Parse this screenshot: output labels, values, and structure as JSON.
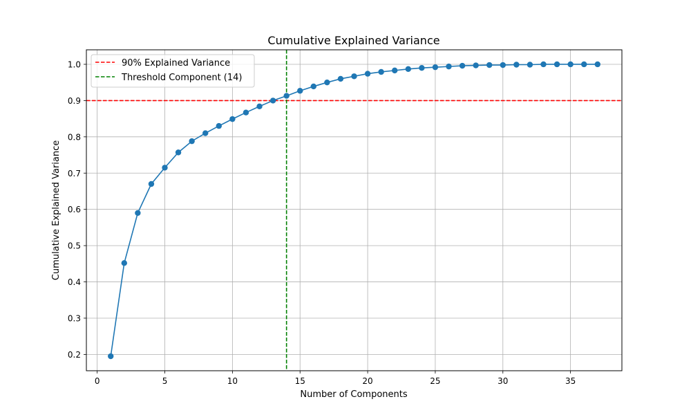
{
  "chart_data": {
    "type": "line",
    "title": "Cumulative Explained Variance",
    "xlabel": "Number of Components",
    "ylabel": "Cumulative Explained Variance",
    "xlim": [
      -0.8,
      38.8
    ],
    "ylim": [
      0.155,
      1.04
    ],
    "xticks": [
      0,
      5,
      10,
      15,
      20,
      25,
      30,
      35
    ],
    "yticks": [
      0.2,
      0.3,
      0.4,
      0.5,
      0.6,
      0.7,
      0.8,
      0.9,
      1.0
    ],
    "grid": true,
    "legend_position": "top-left",
    "series": [
      {
        "name": "Cumulative Explained Variance",
        "color": "#1f77b4",
        "marker": "circle",
        "x": [
          1,
          2,
          3,
          4,
          5,
          6,
          7,
          8,
          9,
          10,
          11,
          12,
          13,
          14,
          15,
          16,
          17,
          18,
          19,
          20,
          21,
          22,
          23,
          24,
          25,
          26,
          27,
          28,
          29,
          30,
          31,
          32,
          33,
          34,
          35,
          36,
          37
        ],
        "y": [
          0.195,
          0.452,
          0.59,
          0.67,
          0.715,
          0.757,
          0.788,
          0.81,
          0.83,
          0.849,
          0.867,
          0.884,
          0.9,
          0.913,
          0.927,
          0.939,
          0.95,
          0.96,
          0.967,
          0.974,
          0.979,
          0.983,
          0.987,
          0.99,
          0.992,
          0.994,
          0.996,
          0.997,
          0.998,
          0.998,
          0.999,
          0.999,
          1.0,
          1.0,
          1.0,
          1.0,
          1.0
        ]
      }
    ],
    "reference_lines": [
      {
        "orientation": "horizontal",
        "value": 0.9,
        "color": "#ff0000",
        "style": "dashed",
        "label": "90% Explained Variance"
      },
      {
        "orientation": "vertical",
        "value": 14,
        "color": "#008000",
        "style": "dashed",
        "label": "Threshold Component (14)"
      }
    ]
  }
}
